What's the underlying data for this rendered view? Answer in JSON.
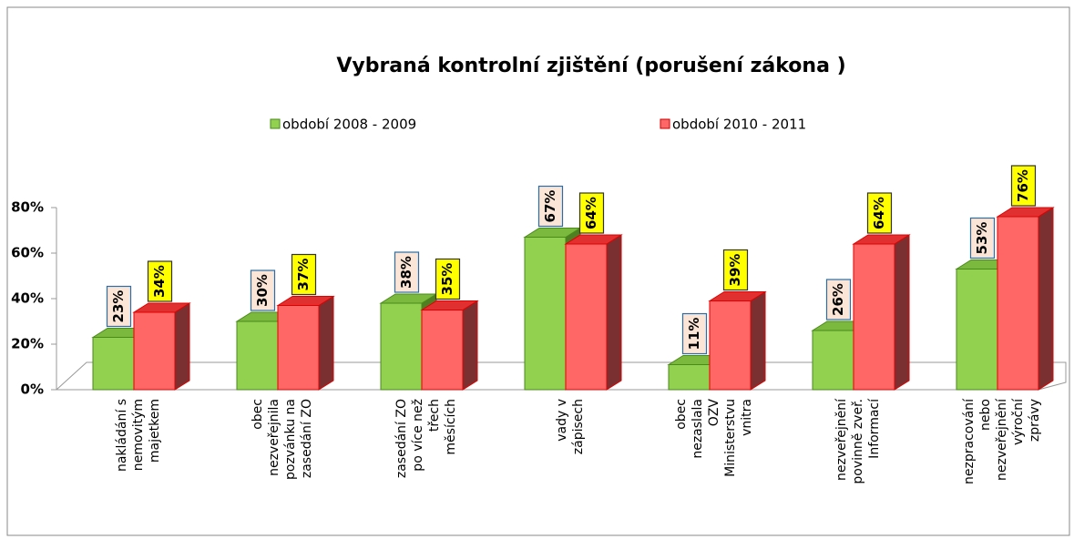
{
  "chart_data": {
    "type": "bar3d",
    "title": "Vybraná  kontrolní zjištění (porušení zákona )",
    "categories": [
      "nakládání s\nnemovitým\nmajetkem",
      "obec\nnezveřejnila\npozvánku na\nzasedání ZO",
      "zasedání ZO\npo více než\ntřech\nměsících",
      "vady v\nzápisech",
      "obec\nnezaslala\nOZV\nMinisterstvu\nvnitra",
      "nezveřejnění\npovinně zveř.\nInformací",
      "nezpracování\nnebo\nnezveřejnění\nvýroční\nzprávy"
    ],
    "series": [
      {
        "name": "období 2008 - 2009",
        "color": "#92d050",
        "values": [
          23,
          30,
          38,
          67,
          11,
          26,
          53
        ],
        "value_labels": [
          "23%",
          "30%",
          "38%",
          "67%",
          "11%",
          "26%",
          "53%"
        ]
      },
      {
        "name": "období 2010 - 2011",
        "color": "#ff6666",
        "values": [
          34,
          37,
          35,
          64,
          39,
          64,
          76
        ],
        "value_labels": [
          "34%",
          "37%",
          "35%",
          "64%",
          "39%",
          "64%",
          "76%"
        ]
      }
    ],
    "ylim": [
      0,
      80
    ],
    "yticks": [
      {
        "value": 0,
        "label": "0%"
      },
      {
        "value": 20,
        "label": "20%"
      },
      {
        "value": 40,
        "label": "40%"
      },
      {
        "value": 60,
        "label": "60%"
      },
      {
        "value": 80,
        "label": "80%"
      }
    ]
  }
}
